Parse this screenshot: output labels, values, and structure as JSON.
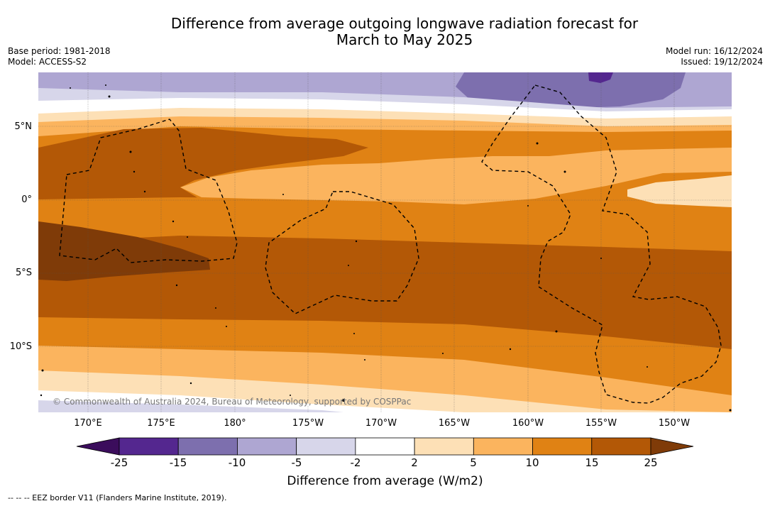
{
  "title": {
    "line1": "Difference from average outgoing longwave radiation forecast for",
    "line2": "March to May 2025"
  },
  "meta_left": {
    "base_period": "Base period: 1981-2018",
    "model": "Model: ACCESS-S2"
  },
  "meta_right": {
    "model_run": "Model run: 16/12/2024",
    "issued": "Issued: 19/12/2024"
  },
  "map": {
    "lat_labels": [
      "5°N",
      "0°",
      "5°S",
      "10°S"
    ],
    "lon_labels": [
      "170°E",
      "175°E",
      "180°",
      "175°W",
      "170°W",
      "165°W",
      "160°W",
      "155°W",
      "150°W"
    ],
    "copyright": "© Commonwealth of Australia 2024, Bureau of Meteorology, supported by COSPPac"
  },
  "colorbar": {
    "ticks": [
      "-25",
      "-15",
      "-10",
      "-5",
      "-2",
      "2",
      "5",
      "10",
      "15",
      "25"
    ],
    "colors": [
      "#3b0d5c",
      "#54278f",
      "#7d6fae",
      "#aea6d2",
      "#d7d6ea",
      "#ffffff",
      "#fde0b6",
      "#fbb45e",
      "#e08214",
      "#b35806",
      "#7f3b08"
    ],
    "label": "Difference from average (W/m2)"
  },
  "footer": {
    "legend_text": "-- -- -- EEZ border V11 (Flanders Marine Institute, 2019)."
  }
}
